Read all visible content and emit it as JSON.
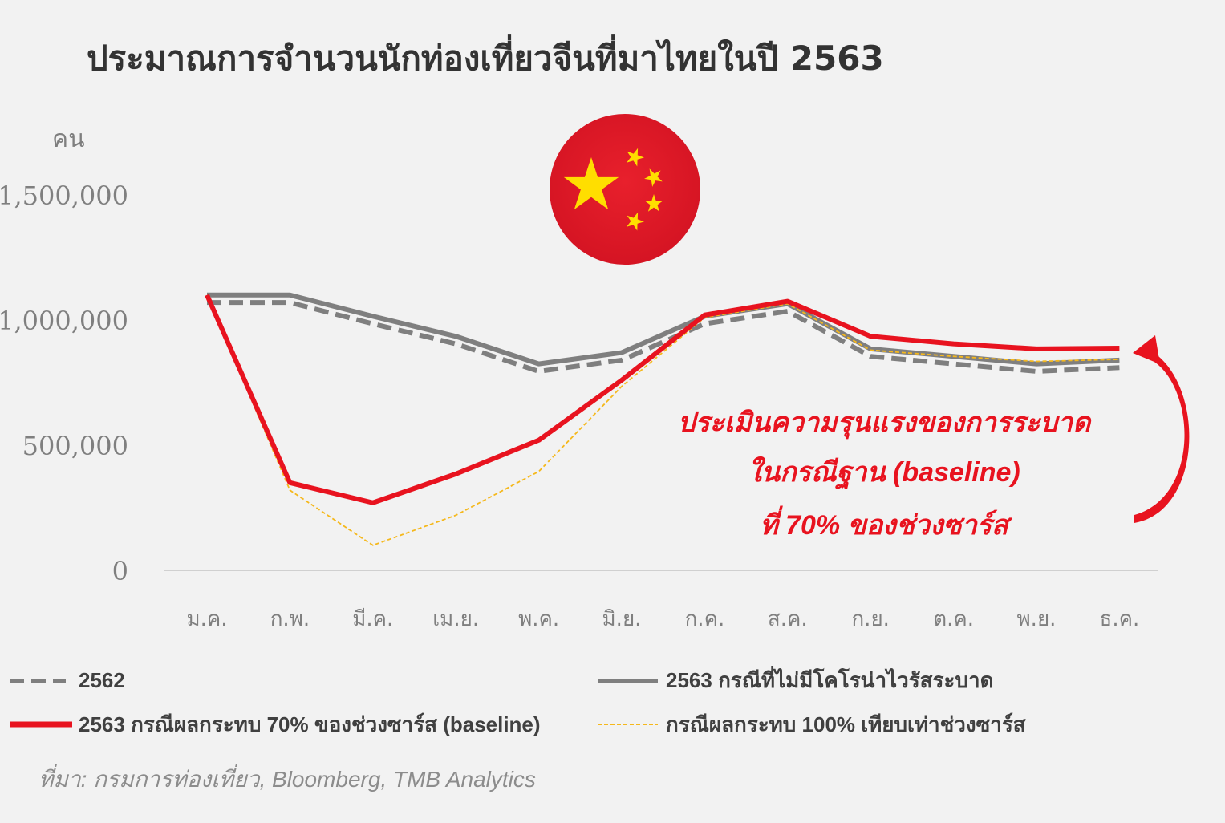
{
  "title": "ประมาณการจำนวนนักท่องเที่ยวจีนที่มาไทยในปี 2563",
  "source": "ที่มา: กรมการท่องเที่ยว, Bloomberg, TMB Analytics",
  "flag_icon": "china-flag-icon",
  "chart_data": {
    "type": "line",
    "title": "ประมาณการจำนวนนักท่องเที่ยวจีนที่มาไทยในปี 2563",
    "ylabel": "คน",
    "xlabel": "",
    "ylim": [
      0,
      1500000
    ],
    "yticks": [
      0,
      500000,
      1000000,
      1500000
    ],
    "ytick_labels": [
      "0",
      "500,000",
      "1,000,000",
      "1,500,000"
    ],
    "grid": false,
    "legend_position": "bottom",
    "categories": [
      "ม.ค.",
      "ก.พ.",
      "มี.ค.",
      "เม.ย.",
      "พ.ค.",
      "มิ.ย.",
      "ก.ค.",
      "ส.ค.",
      "ก.ย.",
      "ต.ค.",
      "พ.ย.",
      "ธ.ค."
    ],
    "series": [
      {
        "name": "2562",
        "style": "dashed",
        "color": "#7f7f7f",
        "values": [
          1070000,
          1070000,
          985000,
          905000,
          795000,
          840000,
          985000,
          1035000,
          855000,
          825000,
          795000,
          810000
        ]
      },
      {
        "name": "2563 กรณีที่ไม่มีโคโรน่าไวรัสระบาด",
        "style": "solid",
        "color": "#7f7f7f",
        "values": [
          1100000,
          1100000,
          1015000,
          935000,
          825000,
          870000,
          1015000,
          1065000,
          885000,
          855000,
          825000,
          840000
        ]
      },
      {
        "name": "2563 กรณีผลกระทบ 70% ของช่วงซาร์ส (baseline)",
        "style": "solid-thick",
        "color": "#e8131f",
        "values": [
          1100000,
          350000,
          270000,
          385000,
          520000,
          760000,
          1020000,
          1075000,
          935000,
          905000,
          885000,
          888000
        ]
      },
      {
        "name": "กรณีผลกระทบ 100% เทียบเท่าช่วงซาร์ส",
        "style": "thin-dashed",
        "color": "#f5b81c",
        "values": [
          1100000,
          320000,
          100000,
          220000,
          395000,
          735000,
          1010000,
          1065000,
          880000,
          855000,
          835000,
          843000
        ]
      }
    ],
    "annotation": {
      "lines": [
        "ประเมินความรุนแรงของการระบาด",
        "ในกรณีฐาน (baseline)",
        "ที่ 70% ของช่วงซาร์ส"
      ],
      "color": "#e8131f"
    }
  }
}
